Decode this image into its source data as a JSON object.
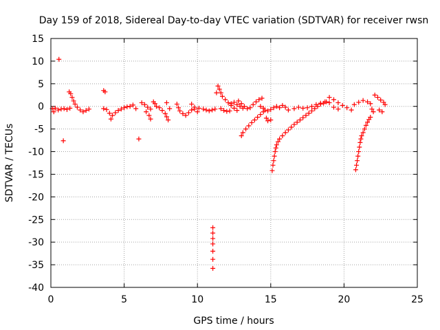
{
  "chart_data": {
    "type": "scatter",
    "title": "Day 159 of 2018, Sidereal Day-to-day VTEC variation (SDTVAR) for receiver rwsn",
    "xlabel": "GPS time / hours",
    "ylabel": "SDTVAR / TECUs",
    "xlim": [
      0,
      25
    ],
    "ylim": [
      -40,
      15
    ],
    "xticks": [
      0,
      5,
      10,
      15,
      20,
      25
    ],
    "yticks": [
      15,
      10,
      5,
      0,
      -5,
      -10,
      -15,
      -20,
      -25,
      -30,
      -35,
      -40
    ],
    "grid": true,
    "marker": "+",
    "color": "#ff0000",
    "series": [
      {
        "name": "SDTVAR",
        "points": [
          [
            0.55,
            10.4
          ],
          [
            0.85,
            -7.6
          ],
          [
            6.0,
            -7.2
          ],
          [
            11.05,
            -26.8
          ],
          [
            11.05,
            -28.0
          ],
          [
            11.05,
            -29.2
          ],
          [
            11.05,
            -30.4
          ],
          [
            11.05,
            -32.0
          ],
          [
            11.05,
            -33.8
          ],
          [
            11.05,
            -35.8
          ],
          [
            0.1,
            -0.5
          ],
          [
            0.2,
            -1.2
          ],
          [
            0.3,
            -0.4
          ],
          [
            0.5,
            -0.8
          ],
          [
            0.7,
            -0.6
          ],
          [
            0.9,
            -0.5
          ],
          [
            1.1,
            -0.7
          ],
          [
            1.3,
            -0.4
          ],
          [
            1.25,
            3.2
          ],
          [
            1.35,
            2.8
          ],
          [
            1.45,
            2.0
          ],
          [
            1.55,
            1.2
          ],
          [
            1.65,
            0.5
          ],
          [
            1.8,
            -0.2
          ],
          [
            2.0,
            -0.8
          ],
          [
            2.2,
            -1.2
          ],
          [
            2.4,
            -0.9
          ],
          [
            2.6,
            -0.6
          ],
          [
            3.6,
            3.5
          ],
          [
            3.7,
            3.2
          ],
          [
            3.6,
            -0.5
          ],
          [
            3.8,
            -0.7
          ],
          [
            4.0,
            -1.5
          ],
          [
            4.2,
            -2.0
          ],
          [
            4.1,
            -2.8
          ],
          [
            4.4,
            -1.4
          ],
          [
            4.6,
            -0.9
          ],
          [
            4.8,
            -0.6
          ],
          [
            5.0,
            -0.3
          ],
          [
            5.2,
            -0.1
          ],
          [
            5.4,
            0.0
          ],
          [
            5.6,
            0.3
          ],
          [
            5.8,
            -0.5
          ],
          [
            6.2,
            0.8
          ],
          [
            6.4,
            0.4
          ],
          [
            6.6,
            -0.2
          ],
          [
            6.8,
            -0.6
          ],
          [
            6.5,
            -1.2
          ],
          [
            6.7,
            -2.0
          ],
          [
            6.8,
            -2.8
          ],
          [
            7.0,
            1.0
          ],
          [
            7.1,
            0.6
          ],
          [
            7.2,
            0.0
          ],
          [
            7.4,
            -0.3
          ],
          [
            7.6,
            -0.9
          ],
          [
            7.8,
            -1.6
          ],
          [
            7.9,
            -2.3
          ],
          [
            8.0,
            -3.0
          ],
          [
            7.9,
            0.8
          ],
          [
            8.1,
            -0.5
          ],
          [
            8.6,
            0.5
          ],
          [
            8.7,
            -0.3
          ],
          [
            8.8,
            -1.0
          ],
          [
            9.0,
            -1.6
          ],
          [
            9.2,
            -2.0
          ],
          [
            9.4,
            -1.4
          ],
          [
            9.6,
            -0.8
          ],
          [
            9.8,
            -0.2
          ],
          [
            9.6,
            0.5
          ],
          [
            9.8,
            -0.6
          ],
          [
            10.0,
            -1.2
          ],
          [
            10.1,
            -0.4
          ],
          [
            10.4,
            -0.6
          ],
          [
            10.6,
            -0.8
          ],
          [
            10.8,
            -1.0
          ],
          [
            11.0,
            -0.8
          ],
          [
            11.2,
            -0.6
          ],
          [
            11.3,
            3.0
          ],
          [
            11.4,
            4.5
          ],
          [
            11.5,
            3.8
          ],
          [
            11.6,
            3.0
          ],
          [
            11.7,
            2.2
          ],
          [
            11.9,
            1.5
          ],
          [
            12.1,
            0.8
          ],
          [
            12.3,
            0.2
          ],
          [
            12.5,
            -0.4
          ],
          [
            12.7,
            -0.9
          ],
          [
            11.6,
            -0.5
          ],
          [
            11.8,
            -0.9
          ],
          [
            12.0,
            -1.1
          ],
          [
            12.2,
            -1.0
          ],
          [
            12.3,
            0.6
          ],
          [
            12.5,
            0.9
          ],
          [
            12.7,
            0.4
          ],
          [
            12.9,
            0.0
          ],
          [
            13.1,
            -0.4
          ],
          [
            13.0,
            -6.5
          ],
          [
            13.1,
            -5.8
          ],
          [
            13.3,
            -5.0
          ],
          [
            13.5,
            -4.3
          ],
          [
            13.7,
            -3.6
          ],
          [
            13.9,
            -3.0
          ],
          [
            14.1,
            -2.4
          ],
          [
            14.3,
            -1.8
          ],
          [
            14.5,
            -1.2
          ],
          [
            12.8,
            1.2
          ],
          [
            13.0,
            0.6
          ],
          [
            13.2,
            0.0
          ],
          [
            13.4,
            -0.5
          ],
          [
            13.6,
            -0.3
          ],
          [
            13.8,
            0.4
          ],
          [
            14.0,
            1.0
          ],
          [
            14.2,
            1.5
          ],
          [
            14.4,
            1.8
          ],
          [
            14.3,
            0.0
          ],
          [
            14.5,
            -0.4
          ],
          [
            14.6,
            -0.8
          ],
          [
            14.8,
            -1.0
          ],
          [
            15.0,
            -0.7
          ],
          [
            15.2,
            -0.3
          ],
          [
            15.4,
            0.0
          ],
          [
            15.6,
            -0.3
          ],
          [
            15.8,
            0.2
          ],
          [
            16.0,
            -0.2
          ],
          [
            16.2,
            -0.8
          ],
          [
            14.7,
            -2.6
          ],
          [
            14.8,
            -3.2
          ],
          [
            15.0,
            -3.0
          ],
          [
            15.1,
            -14.2
          ],
          [
            15.15,
            -13.0
          ],
          [
            15.2,
            -12.0
          ],
          [
            15.25,
            -11.0
          ],
          [
            15.3,
            -10.0
          ],
          [
            15.35,
            -9.2
          ],
          [
            15.4,
            -8.5
          ],
          [
            15.5,
            -7.8
          ],
          [
            15.6,
            -7.2
          ],
          [
            15.8,
            -6.5
          ],
          [
            16.0,
            -5.8
          ],
          [
            16.2,
            -5.2
          ],
          [
            16.4,
            -4.6
          ],
          [
            16.6,
            -4.0
          ],
          [
            16.8,
            -3.5
          ],
          [
            17.0,
            -3.0
          ],
          [
            17.2,
            -2.5
          ],
          [
            17.4,
            -2.0
          ],
          [
            17.6,
            -1.5
          ],
          [
            17.8,
            -1.0
          ],
          [
            18.0,
            -0.5
          ],
          [
            18.2,
            0.0
          ],
          [
            18.4,
            0.5
          ],
          [
            18.6,
            0.7
          ],
          [
            18.8,
            1.0
          ],
          [
            16.6,
            -0.5
          ],
          [
            16.9,
            -0.2
          ],
          [
            17.2,
            -0.4
          ],
          [
            17.5,
            -0.3
          ],
          [
            17.8,
            0.0
          ],
          [
            18.1,
            0.4
          ],
          [
            18.4,
            0.7
          ],
          [
            18.7,
            1.0
          ],
          [
            19.0,
            0.8
          ],
          [
            19.0,
            2.0
          ],
          [
            19.3,
            1.5
          ],
          [
            19.6,
            0.8
          ],
          [
            19.9,
            0.2
          ],
          [
            20.2,
            -0.3
          ],
          [
            20.5,
            -0.8
          ],
          [
            20.7,
            0.4
          ],
          [
            21.0,
            0.9
          ],
          [
            21.3,
            1.3
          ],
          [
            21.6,
            1.0
          ],
          [
            19.3,
            -0.2
          ],
          [
            19.6,
            -0.6
          ],
          [
            20.8,
            -14.0
          ],
          [
            20.85,
            -13.0
          ],
          [
            20.9,
            -12.0
          ],
          [
            20.95,
            -11.0
          ],
          [
            21.0,
            -10.0
          ],
          [
            21.05,
            -9.0
          ],
          [
            21.1,
            -8.0
          ],
          [
            21.15,
            -7.2
          ],
          [
            21.2,
            -6.5
          ],
          [
            21.3,
            -5.8
          ],
          [
            21.4,
            -5.0
          ],
          [
            21.5,
            -4.2
          ],
          [
            21.6,
            -3.5
          ],
          [
            21.7,
            -2.9
          ],
          [
            21.8,
            -2.4
          ],
          [
            21.8,
            0.6
          ],
          [
            21.9,
            -0.6
          ],
          [
            22.0,
            -1.2
          ],
          [
            22.1,
            2.5
          ],
          [
            22.3,
            2.0
          ],
          [
            22.5,
            1.4
          ],
          [
            22.7,
            0.9
          ],
          [
            22.8,
            0.4
          ],
          [
            22.4,
            -0.8
          ],
          [
            22.6,
            -1.2
          ]
        ]
      }
    ]
  }
}
